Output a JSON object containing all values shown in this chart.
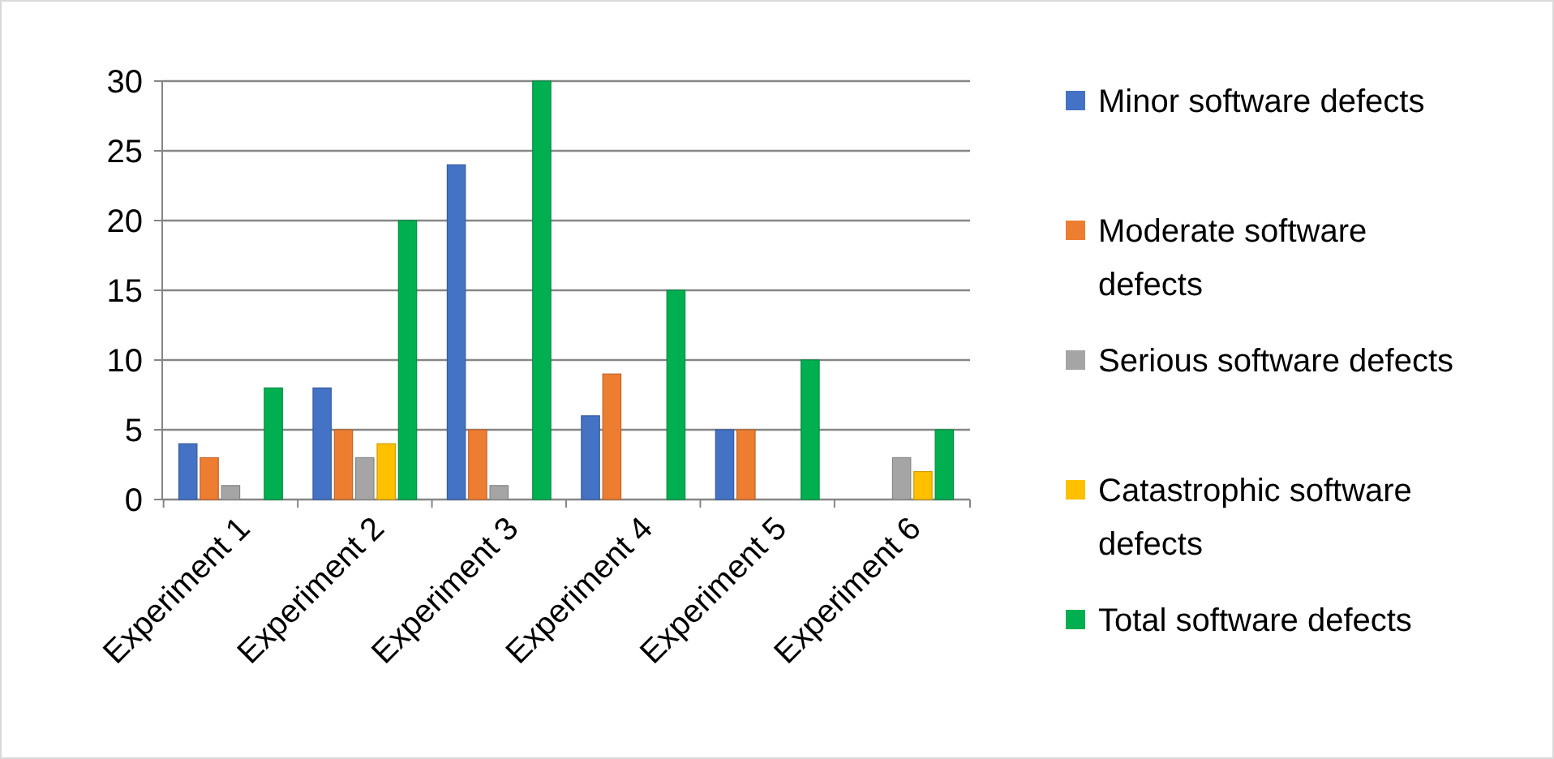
{
  "chart_data": {
    "type": "bar",
    "categories": [
      "Experiment 1",
      "Experiment 2",
      "Experiment 3",
      "Experiment 4",
      "Experiment 5",
      "Experiment 6"
    ],
    "series": [
      {
        "name": "Minor software defects",
        "color": "#4472c4",
        "values": [
          4,
          8,
          24,
          6,
          5,
          0
        ]
      },
      {
        "name": "Moderate software defects",
        "color": "#ed7d31",
        "values": [
          3,
          5,
          5,
          9,
          5,
          0
        ]
      },
      {
        "name": "Serious software defects",
        "color": "#a5a5a5",
        "values": [
          1,
          3,
          1,
          0,
          0,
          3
        ]
      },
      {
        "name": "Catastrophic software defects",
        "color": "#ffc000",
        "values": [
          0,
          4,
          0,
          0,
          0,
          2
        ]
      },
      {
        "name": "Total software defects",
        "color": "#00b050",
        "values": [
          8,
          20,
          30,
          15,
          10,
          5
        ]
      }
    ],
    "ylim": [
      0,
      30
    ],
    "yticks": [
      0,
      5,
      10,
      15,
      20,
      25,
      30
    ],
    "grid": "y",
    "legend": "right"
  }
}
